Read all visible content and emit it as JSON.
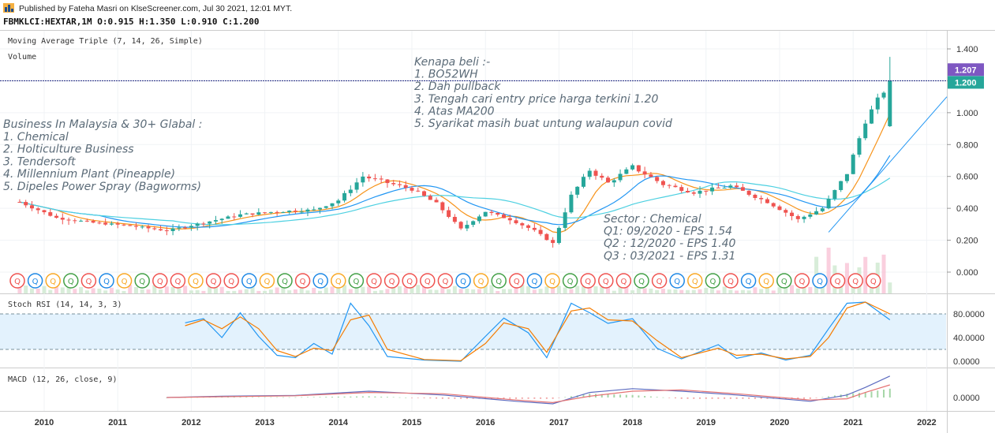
{
  "header": {
    "published": "Published by Fateha Masri on KlseScreener.com, Jul 30 2021, 12:01 MYT.",
    "symbol_line": "FBMKLCI:HEXTAR,1M  O:0.915 H:1.350 L:0.910 C:1.200",
    "ma_label": "Moving Average Triple (7, 14, 26, Simple)",
    "volume_label": "Volume"
  },
  "annotations": {
    "reasons": [
      "Kenapa beli :-",
      "1. BO52WH",
      "2. Dah pullback",
      "3. Tengah cari entry price harga terkini 1.20",
      "4. Atas MA200",
      "5. Syarikat masih buat untung walaupun covid"
    ],
    "business": [
      "Business In Malaysia & 30+ Glabal :",
      "1. Chemical",
      "2. Holticulture Business",
      "3. Tendersoft",
      "4. Millennium Plant (Pineapple)",
      "5. Dipeles Power Spray (Bagworms)"
    ],
    "sector": [
      "Sector : Chemical",
      "Q1: 09/2020 - EPS 1.54",
      "Q2 : 12/2020 - EPS 1.40",
      "Q3 : 03/2021 - EPS 1.31"
    ]
  },
  "price_badges": [
    {
      "value": "1.207",
      "color": "#7e57c2"
    },
    {
      "value": "1.200",
      "color": "#26a69a"
    }
  ],
  "colors": {
    "up": "#26a69a",
    "down": "#ef5350",
    "ma_fast": "#f7931a",
    "ma_mid": "#2196f3",
    "ma_slow": "#4dd0e1",
    "stoch_k": "#2196f3",
    "stoch_d": "#f57c00",
    "macd_line": "#5c6bc0",
    "signal_line": "#e57373",
    "band": "#e3f2fd",
    "hline": "#1a237e"
  },
  "chart_data": {
    "type": "candlestick",
    "title": "FBMKLCI:HEXTAR,1M",
    "ylim": [
      -0.05,
      1.45
    ],
    "hline": 1.2,
    "y_ticks": [
      "1.400",
      "1.200",
      "1.000",
      "0.800",
      "0.600",
      "0.400",
      "0.200",
      "0.000"
    ],
    "x_ticks": [
      "2010",
      "2011",
      "2012",
      "2013",
      "2014",
      "2015",
      "2016",
      "2017",
      "2018",
      "2019",
      "2020",
      "2021",
      "2022"
    ],
    "price_path": [
      [
        "2009-09",
        0.44
      ],
      [
        "2010-03",
        0.34
      ],
      [
        "2010-09",
        0.31
      ],
      [
        "2011-03",
        0.29
      ],
      [
        "2011-09",
        0.26
      ],
      [
        "2012-03",
        0.31
      ],
      [
        "2012-09",
        0.36
      ],
      [
        "2013-03",
        0.38
      ],
      [
        "2013-09",
        0.39
      ],
      [
        "2014-01",
        0.45
      ],
      [
        "2014-05",
        0.6
      ],
      [
        "2014-09",
        0.56
      ],
      [
        "2015-01",
        0.52
      ],
      [
        "2015-05",
        0.43
      ],
      [
        "2015-09",
        0.27
      ],
      [
        "2016-01",
        0.38
      ],
      [
        "2016-05",
        0.33
      ],
      [
        "2016-09",
        0.26
      ],
      [
        "2016-12",
        0.18
      ],
      [
        "2017-03",
        0.48
      ],
      [
        "2017-06",
        0.64
      ],
      [
        "2017-09",
        0.56
      ],
      [
        "2018-01",
        0.66
      ],
      [
        "2018-06",
        0.55
      ],
      [
        "2018-11",
        0.5
      ],
      [
        "2019-05",
        0.54
      ],
      [
        "2019-11",
        0.44
      ],
      [
        "2020-04",
        0.33
      ],
      [
        "2020-08",
        0.4
      ],
      [
        "2020-12",
        0.62
      ],
      [
        "2021-03",
        0.95
      ],
      [
        "2021-07",
        1.2
      ]
    ],
    "stoch_rsi": {
      "label": "Stoch RSI (14, 14, 3, 3)",
      "ylim": [
        0,
        100
      ],
      "bands": [
        20,
        80
      ],
      "y_ticks": [
        "80.0000",
        "40.0000",
        "0.0000"
      ],
      "k": [
        [
          "2011-12",
          65
        ],
        [
          "2012-03",
          72
        ],
        [
          "2012-06",
          40
        ],
        [
          "2012-09",
          82
        ],
        [
          "2012-12",
          42
        ],
        [
          "2013-03",
          10
        ],
        [
          "2013-06",
          6
        ],
        [
          "2013-09",
          30
        ],
        [
          "2013-12",
          12
        ],
        [
          "2014-03",
          98
        ],
        [
          "2014-06",
          60
        ],
        [
          "2014-09",
          8
        ],
        [
          "2015-03",
          2
        ],
        [
          "2015-09",
          0
        ],
        [
          "2016-01",
          42
        ],
        [
          "2016-04",
          73
        ],
        [
          "2016-08",
          48
        ],
        [
          "2016-11",
          6
        ],
        [
          "2017-03",
          98
        ],
        [
          "2017-06",
          82
        ],
        [
          "2017-09",
          64
        ],
        [
          "2018-01",
          72
        ],
        [
          "2018-05",
          22
        ],
        [
          "2018-09",
          4
        ],
        [
          "2019-03",
          28
        ],
        [
          "2019-06",
          5
        ],
        [
          "2019-10",
          14
        ],
        [
          "2020-02",
          2
        ],
        [
          "2020-06",
          10
        ],
        [
          "2020-09",
          55
        ],
        [
          "2020-12",
          98
        ],
        [
          "2021-03",
          100
        ],
        [
          "2021-07",
          70
        ]
      ],
      "d": [
        [
          "2011-12",
          60
        ],
        [
          "2012-03",
          70
        ],
        [
          "2012-06",
          55
        ],
        [
          "2012-09",
          75
        ],
        [
          "2012-12",
          55
        ],
        [
          "2013-03",
          18
        ],
        [
          "2013-06",
          8
        ],
        [
          "2013-09",
          22
        ],
        [
          "2013-12",
          18
        ],
        [
          "2014-03",
          70
        ],
        [
          "2014-06",
          78
        ],
        [
          "2014-09",
          20
        ],
        [
          "2015-03",
          3
        ],
        [
          "2015-09",
          1
        ],
        [
          "2016-01",
          30
        ],
        [
          "2016-04",
          65
        ],
        [
          "2016-08",
          55
        ],
        [
          "2016-11",
          15
        ],
        [
          "2017-03",
          85
        ],
        [
          "2017-06",
          90
        ],
        [
          "2017-09",
          70
        ],
        [
          "2018-01",
          68
        ],
        [
          "2018-05",
          35
        ],
        [
          "2018-09",
          6
        ],
        [
          "2019-03",
          22
        ],
        [
          "2019-06",
          10
        ],
        [
          "2019-10",
          12
        ],
        [
          "2020-02",
          4
        ],
        [
          "2020-06",
          8
        ],
        [
          "2020-09",
          40
        ],
        [
          "2020-12",
          90
        ],
        [
          "2021-03",
          100
        ],
        [
          "2021-07",
          80
        ]
      ]
    },
    "macd": {
      "label": "MACD (12, 26, close, 9)",
      "ylim": [
        -0.05,
        0.1
      ],
      "y_ticks": [
        "0.0000"
      ],
      "macd": [
        [
          "2011-09",
          0.0
        ],
        [
          "2012-06",
          0.005
        ],
        [
          "2013-06",
          0.008
        ],
        [
          "2014-06",
          0.025
        ],
        [
          "2015-06",
          0.01
        ],
        [
          "2016-06",
          -0.015
        ],
        [
          "2016-12",
          -0.025
        ],
        [
          "2017-06",
          0.02
        ],
        [
          "2018-01",
          0.035
        ],
        [
          "2018-09",
          0.025
        ],
        [
          "2019-06",
          0.01
        ],
        [
          "2020-06",
          -0.015
        ],
        [
          "2020-12",
          0.01
        ],
        [
          "2021-03",
          0.04
        ],
        [
          "2021-07",
          0.085
        ]
      ],
      "signal": [
        [
          "2011-09",
          0.0
        ],
        [
          "2012-06",
          0.003
        ],
        [
          "2013-06",
          0.007
        ],
        [
          "2014-06",
          0.02
        ],
        [
          "2015-06",
          0.015
        ],
        [
          "2016-06",
          -0.01
        ],
        [
          "2016-12",
          -0.02
        ],
        [
          "2017-06",
          0.005
        ],
        [
          "2018-01",
          0.025
        ],
        [
          "2018-09",
          0.03
        ],
        [
          "2019-06",
          0.015
        ],
        [
          "2020-06",
          -0.01
        ],
        [
          "2020-12",
          -0.005
        ],
        [
          "2021-03",
          0.02
        ],
        [
          "2021-07",
          0.05
        ]
      ]
    }
  }
}
